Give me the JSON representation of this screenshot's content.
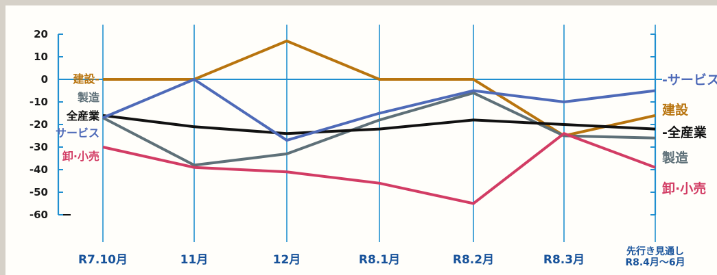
{
  "chart_data": {
    "type": "line",
    "categories": [
      "R7.10月",
      "11月",
      "12月",
      "R8.1月",
      "R8.2月",
      "R8.3月",
      "先行き見通し\nR8.4月〜6月"
    ],
    "ylim": [
      -60,
      20
    ],
    "yticks": [
      "20",
      "10",
      "0",
      "-10",
      "-20",
      "-30",
      "-40",
      "-50",
      "-60"
    ],
    "grid": "vertical lines at categories, horizontal line at 0",
    "series": [
      {
        "name": "建設",
        "color": "#b8740e",
        "values": [
          0,
          0,
          17,
          0,
          0,
          -25,
          -16
        ]
      },
      {
        "name": "製造",
        "color": "#5e7078",
        "values": [
          -17,
          -38,
          -33,
          -18,
          -6,
          -25,
          -26
        ]
      },
      {
        "name": "全産業",
        "color": "#111111",
        "values": [
          -16,
          -21,
          -24,
          -22,
          -18,
          -20,
          -22
        ]
      },
      {
        "name": "サービス",
        "color": "#4e6ab8",
        "values": [
          -17,
          0,
          -27,
          -15,
          -5,
          -10,
          -5
        ]
      },
      {
        "name": "卸・小売",
        "color": "#d23c64",
        "values": [
          -30,
          -39,
          -41,
          -46,
          -55,
          -24,
          -39
        ]
      }
    ],
    "left_labels": [
      {
        "text": "建設",
        "series": "建設"
      },
      {
        "text": "製造",
        "series": "製造"
      },
      {
        "text": "全産業",
        "series": "全産業"
      },
      {
        "text": "サービス",
        "series": "サービス"
      },
      {
        "text": "卸·小売",
        "series": "卸・小売"
      }
    ],
    "right_labels": [
      {
        "text": "サービス",
        "series": "サービス"
      },
      {
        "text": "建設",
        "series": "建設"
      },
      {
        "text": "全産業",
        "series": "全産業"
      },
      {
        "text": "製造",
        "series": "製造"
      },
      {
        "text": "卸·小売",
        "series": "卸・小売"
      }
    ]
  }
}
